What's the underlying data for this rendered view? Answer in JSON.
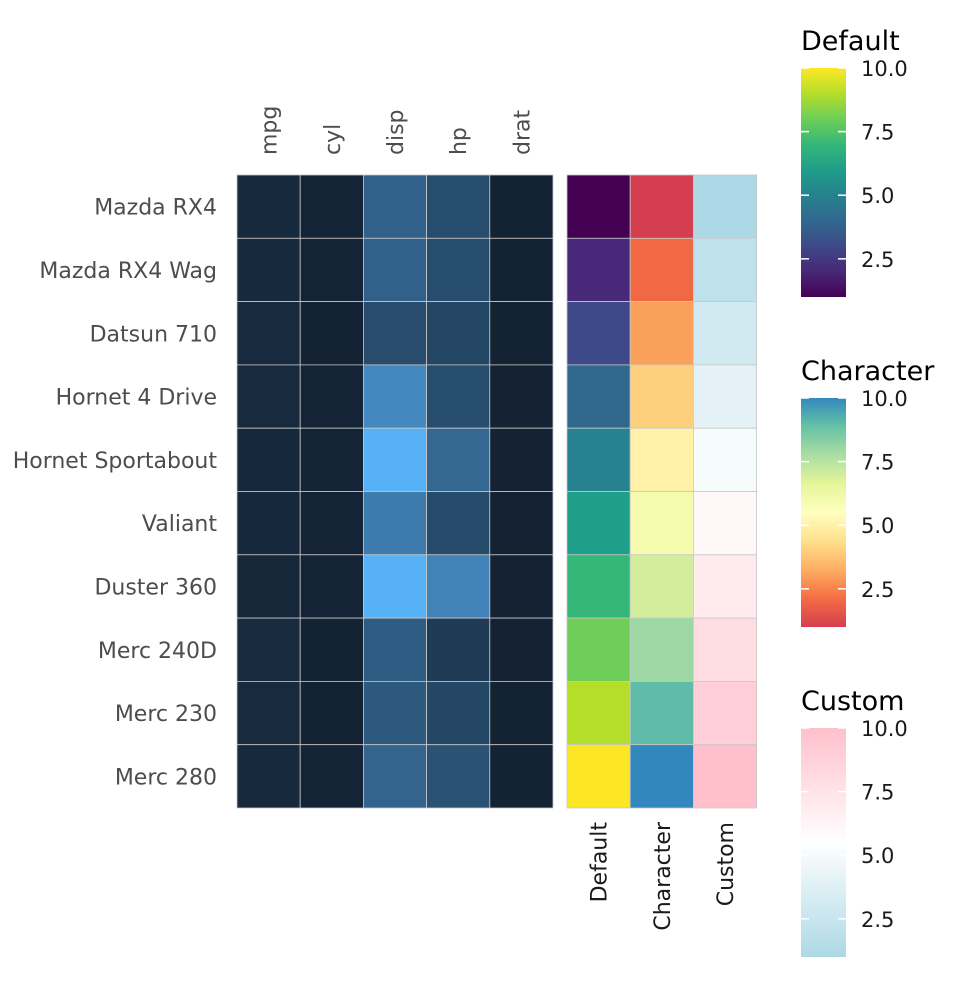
{
  "chart_data": {
    "type": "heatmap",
    "rows": [
      "Mazda RX4",
      "Mazda RX4 Wag",
      "Datsun 710",
      "Hornet 4 Drive",
      "Hornet Sportabout",
      "Valiant",
      "Duster 360",
      "Merc 240D",
      "Merc 230",
      "Merc 280"
    ],
    "columns": [
      "mpg",
      "cyl",
      "disp",
      "hp",
      "drat"
    ],
    "values": [
      [
        21.0,
        6,
        160.0,
        110,
        3.9
      ],
      [
        21.0,
        6,
        160.0,
        110,
        3.9
      ],
      [
        22.8,
        4,
        108.0,
        93,
        3.85
      ],
      [
        21.4,
        6,
        258.0,
        110,
        3.08
      ],
      [
        18.7,
        8,
        360.0,
        175,
        3.15
      ],
      [
        18.1,
        6,
        225.0,
        105,
        2.76
      ],
      [
        14.3,
        8,
        360.0,
        245,
        3.21
      ],
      [
        24.4,
        4,
        146.7,
        62,
        3.69
      ],
      [
        22.8,
        4,
        140.8,
        95,
        3.92
      ],
      [
        19.2,
        6,
        167.6,
        123,
        3.92
      ]
    ],
    "value_range": [
      0,
      360
    ],
    "main_palette": [
      "#132132",
      "#56b1f7"
    ],
    "annotations": {
      "columns": [
        "Default",
        "Character",
        "Custom"
      ],
      "values": {
        "Default": [
          1,
          2,
          3,
          4,
          5,
          6,
          7,
          8,
          9,
          10
        ],
        "Character": [
          1,
          2,
          3,
          4,
          5,
          6,
          7,
          8,
          9,
          10
        ],
        "Custom": [
          1,
          2,
          3,
          4,
          5,
          6,
          7,
          8,
          9,
          10
        ]
      }
    },
    "legends": [
      {
        "title": "Default",
        "ticks": [
          "2.5",
          "5.0",
          "7.5",
          "10.0"
        ],
        "tick_values": [
          2.5,
          5.0,
          7.5,
          10.0
        ],
        "range": [
          1,
          10
        ],
        "colors": [
          "#440154",
          "#482878",
          "#3e4989",
          "#31688e",
          "#26828e",
          "#1f9e89",
          "#35b779",
          "#6ece58",
          "#b5de2b",
          "#fde725"
        ]
      },
      {
        "title": "Character",
        "ticks": [
          "2.5",
          "5.0",
          "7.5",
          "10.0"
        ],
        "tick_values": [
          2.5,
          5.0,
          7.5,
          10.0
        ],
        "range": [
          1,
          10
        ],
        "colors": [
          "#d53e4f",
          "#f46d43",
          "#fdae61",
          "#fee08b",
          "#ffffbf",
          "#e6f598",
          "#abdda4",
          "#66c2a5",
          "#3288bd"
        ]
      },
      {
        "title": "Custom",
        "ticks": [
          "2.5",
          "5.0",
          "7.5",
          "10.0"
        ],
        "tick_values": [
          2.5,
          5.0,
          7.5,
          10.0
        ],
        "range": [
          1,
          10
        ],
        "colors": [
          "#add8e6",
          "#ffffff",
          "#ffc0cb"
        ]
      }
    ]
  }
}
